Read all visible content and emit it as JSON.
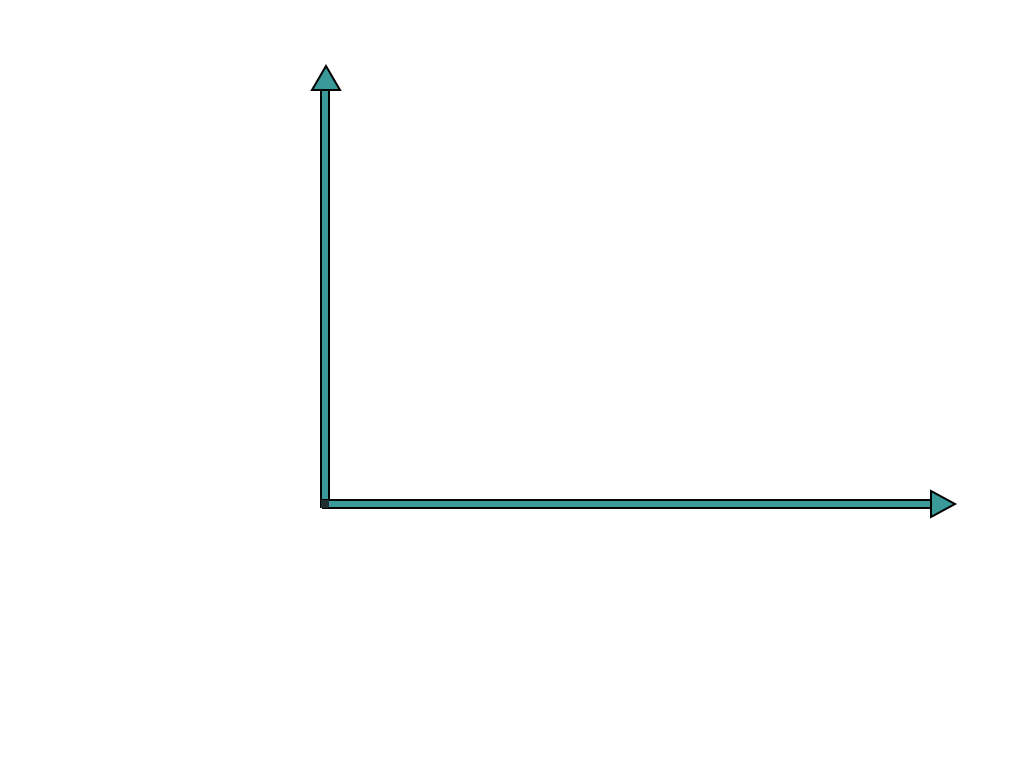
{
  "diagram": {
    "kind": "empty-axes",
    "axes": {
      "x_axis": {
        "direction": "right",
        "arrowhead": "end"
      },
      "y_axis": {
        "direction": "up",
        "arrowhead": "end"
      }
    },
    "colors": {
      "background": "#ffffff",
      "axis_fill": "#3a9a9a",
      "axis_outline": "#000000"
    },
    "icons": {
      "x_arrow": "arrow-right-icon",
      "y_arrow": "arrow-up-icon"
    }
  }
}
